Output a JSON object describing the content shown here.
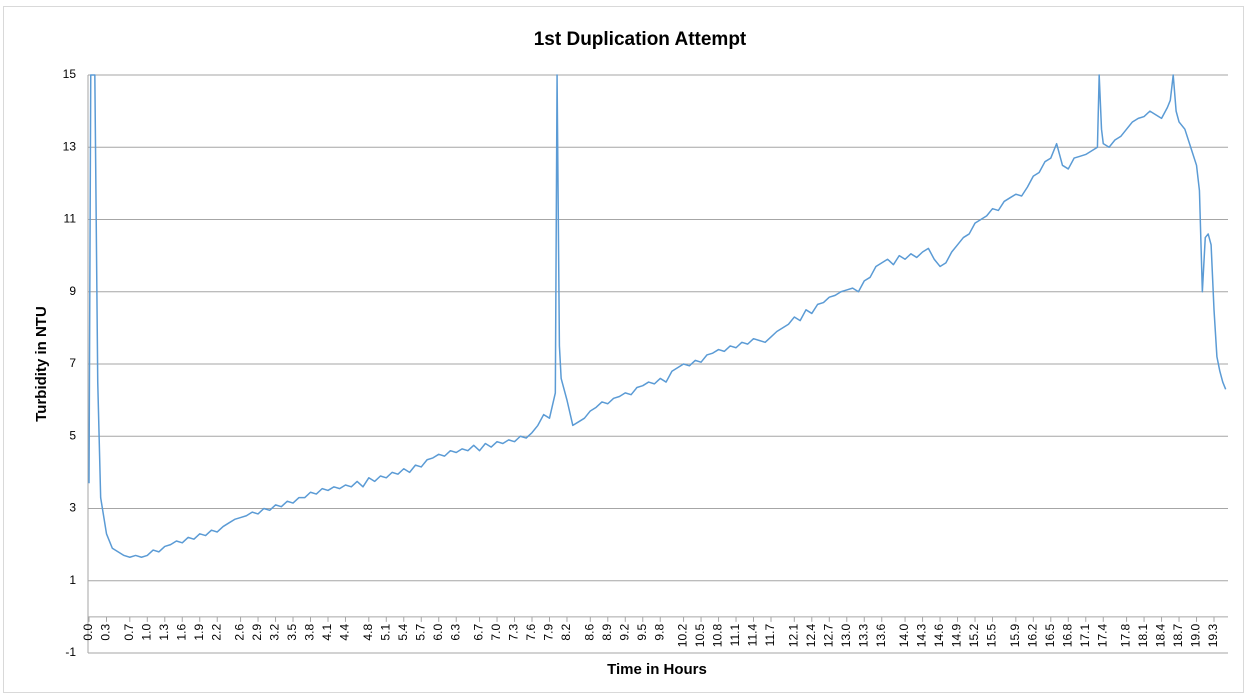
{
  "chart_data": {
    "type": "line",
    "title": "1st Duplication Attempt",
    "x_label": "Time in Hours",
    "y_label": "Turbidity in NTU",
    "x": [
      0,
      0.03,
      0.1,
      0.15,
      0.2,
      0.3,
      0.4,
      0.5,
      0.6,
      0.7,
      0.8,
      0.9,
      1.0,
      1.1,
      1.2,
      1.3,
      1.4,
      1.5,
      1.6,
      1.7,
      1.8,
      1.9,
      2.0,
      2.1,
      2.2,
      2.3,
      2.4,
      2.5,
      2.6,
      2.7,
      2.8,
      2.9,
      3.0,
      3.1,
      3.2,
      3.3,
      3.4,
      3.5,
      3.6,
      3.7,
      3.8,
      3.9,
      4.0,
      4.1,
      4.2,
      4.3,
      4.4,
      4.5,
      4.6,
      4.7,
      4.8,
      4.9,
      5.0,
      5.1,
      5.2,
      5.3,
      5.4,
      5.5,
      5.6,
      5.7,
      5.8,
      5.9,
      6.0,
      6.1,
      6.2,
      6.3,
      6.4,
      6.5,
      6.6,
      6.7,
      6.8,
      6.9,
      7.0,
      7.1,
      7.2,
      7.3,
      7.4,
      7.5,
      7.6,
      7.7,
      7.8,
      7.9,
      8.0,
      8.03,
      8.07,
      8.1,
      8.2,
      8.3,
      8.4,
      8.5,
      8.6,
      8.7,
      8.8,
      8.9,
      9.0,
      9.1,
      9.2,
      9.3,
      9.4,
      9.5,
      9.6,
      9.7,
      9.8,
      9.9,
      10.0,
      10.1,
      10.2,
      10.3,
      10.4,
      10.5,
      10.6,
      10.7,
      10.8,
      10.9,
      11.0,
      11.1,
      11.2,
      11.3,
      11.4,
      11.5,
      11.6,
      11.7,
      11.8,
      11.9,
      12.0,
      12.1,
      12.2,
      12.3,
      12.4,
      12.5,
      12.6,
      12.7,
      12.8,
      12.9,
      13.0,
      13.1,
      13.2,
      13.3,
      13.4,
      13.5,
      13.6,
      13.7,
      13.8,
      13.9,
      14.0,
      14.1,
      14.2,
      14.3,
      14.4,
      14.5,
      14.6,
      14.7,
      14.8,
      14.9,
      15.0,
      15.1,
      15.2,
      15.3,
      15.4,
      15.5,
      15.6,
      15.7,
      15.8,
      15.9,
      16.0,
      16.1,
      16.2,
      16.3,
      16.4,
      16.5,
      16.6,
      16.7,
      16.8,
      16.9,
      17.0,
      17.1,
      17.2,
      17.3,
      17.33,
      17.37,
      17.4,
      17.5,
      17.6,
      17.7,
      17.8,
      17.9,
      18.0,
      18.1,
      18.2,
      18.3,
      18.4,
      18.5,
      18.55,
      18.6,
      18.65,
      18.7,
      18.8,
      18.9,
      19.0,
      19.05,
      19.1,
      19.15,
      19.2,
      19.25,
      19.3,
      19.35,
      19.4,
      19.45,
      19.5
    ],
    "series": [
      {
        "color": "#5b9bd5",
        "values": [
          3.7,
          15,
          15,
          6.5,
          3.3,
          2.3,
          1.9,
          1.8,
          1.7,
          1.65,
          1.7,
          1.65,
          1.7,
          1.85,
          1.8,
          1.95,
          2.0,
          2.1,
          2.05,
          2.2,
          2.15,
          2.3,
          2.25,
          2.4,
          2.35,
          2.5,
          2.6,
          2.7,
          2.75,
          2.8,
          2.9,
          2.85,
          3.0,
          2.95,
          3.1,
          3.05,
          3.2,
          3.15,
          3.3,
          3.3,
          3.45,
          3.4,
          3.55,
          3.5,
          3.6,
          3.55,
          3.65,
          3.6,
          3.75,
          3.6,
          3.85,
          3.75,
          3.9,
          3.85,
          4.0,
          3.95,
          4.1,
          4.0,
          4.2,
          4.15,
          4.35,
          4.4,
          4.5,
          4.45,
          4.6,
          4.55,
          4.65,
          4.6,
          4.75,
          4.6,
          4.8,
          4.7,
          4.85,
          4.8,
          4.9,
          4.85,
          5.0,
          4.95,
          5.1,
          5.3,
          5.6,
          5.5,
          6.2,
          15,
          7.5,
          6.6,
          6.0,
          5.3,
          5.4,
          5.5,
          5.7,
          5.8,
          5.95,
          5.9,
          6.05,
          6.1,
          6.2,
          6.15,
          6.35,
          6.4,
          6.5,
          6.45,
          6.6,
          6.5,
          6.8,
          6.9,
          7.0,
          6.95,
          7.1,
          7.05,
          7.25,
          7.3,
          7.4,
          7.35,
          7.5,
          7.45,
          7.6,
          7.55,
          7.7,
          7.65,
          7.6,
          7.75,
          7.9,
          8.0,
          8.1,
          8.3,
          8.2,
          8.5,
          8.4,
          8.65,
          8.7,
          8.85,
          8.9,
          9.0,
          9.05,
          9.1,
          9.0,
          9.3,
          9.4,
          9.7,
          9.8,
          9.9,
          9.75,
          10.0,
          9.9,
          10.05,
          9.95,
          10.1,
          10.2,
          9.9,
          9.7,
          9.8,
          10.1,
          10.3,
          10.5,
          10.6,
          10.9,
          11.0,
          11.1,
          11.3,
          11.25,
          11.5,
          11.6,
          11.7,
          11.65,
          11.9,
          12.2,
          12.3,
          12.6,
          12.7,
          13.1,
          12.5,
          12.4,
          12.7,
          12.75,
          12.8,
          12.9,
          13.0,
          15,
          13.5,
          13.1,
          13.0,
          13.2,
          13.3,
          13.5,
          13.7,
          13.8,
          13.85,
          14.0,
          13.9,
          13.8,
          14.1,
          14.3,
          15,
          14.0,
          13.7,
          13.5,
          13.0,
          12.5,
          11.8,
          9.0,
          10.5,
          10.6,
          10.3,
          8.5,
          7.2,
          6.8,
          6.5,
          6.3
        ]
      }
    ],
    "xlim": [
      0,
      19.54
    ],
    "xticks": [
      {
        "value": 0,
        "label": "0.0"
      },
      0.3,
      0.7,
      {
        "value": 1,
        "label": "1.0"
      },
      1.3,
      1.6,
      1.9,
      2.2,
      2.6,
      2.9,
      3.2,
      3.5,
      3.8,
      4.1,
      4.4,
      4.8,
      5.1,
      5.4,
      5.7,
      {
        "value": 6,
        "label": "6.0"
      },
      6.3,
      6.7,
      {
        "value": 7,
        "label": "7.0"
      },
      7.3,
      7.6,
      7.9,
      8.2,
      8.6,
      8.9,
      9.2,
      9.5,
      9.8,
      10.2,
      10.5,
      10.8,
      11.1,
      11.4,
      11.7,
      12.1,
      12.4,
      12.7,
      {
        "value": 13,
        "label": "13.0"
      },
      13.3,
      13.6,
      {
        "value": 14,
        "label": "14.0"
      },
      14.3,
      14.6,
      14.9,
      15.2,
      15.5,
      15.9,
      16.2,
      16.5,
      16.8,
      17.1,
      17.4,
      17.8,
      18.1,
      18.4,
      18.7,
      {
        "value": 19,
        "label": "19.0"
      },
      19.3
    ],
    "ylim": [
      -1,
      15
    ],
    "yticks": [
      -1,
      1,
      3,
      5,
      7,
      9,
      11,
      13,
      15
    ],
    "grid": true
  }
}
